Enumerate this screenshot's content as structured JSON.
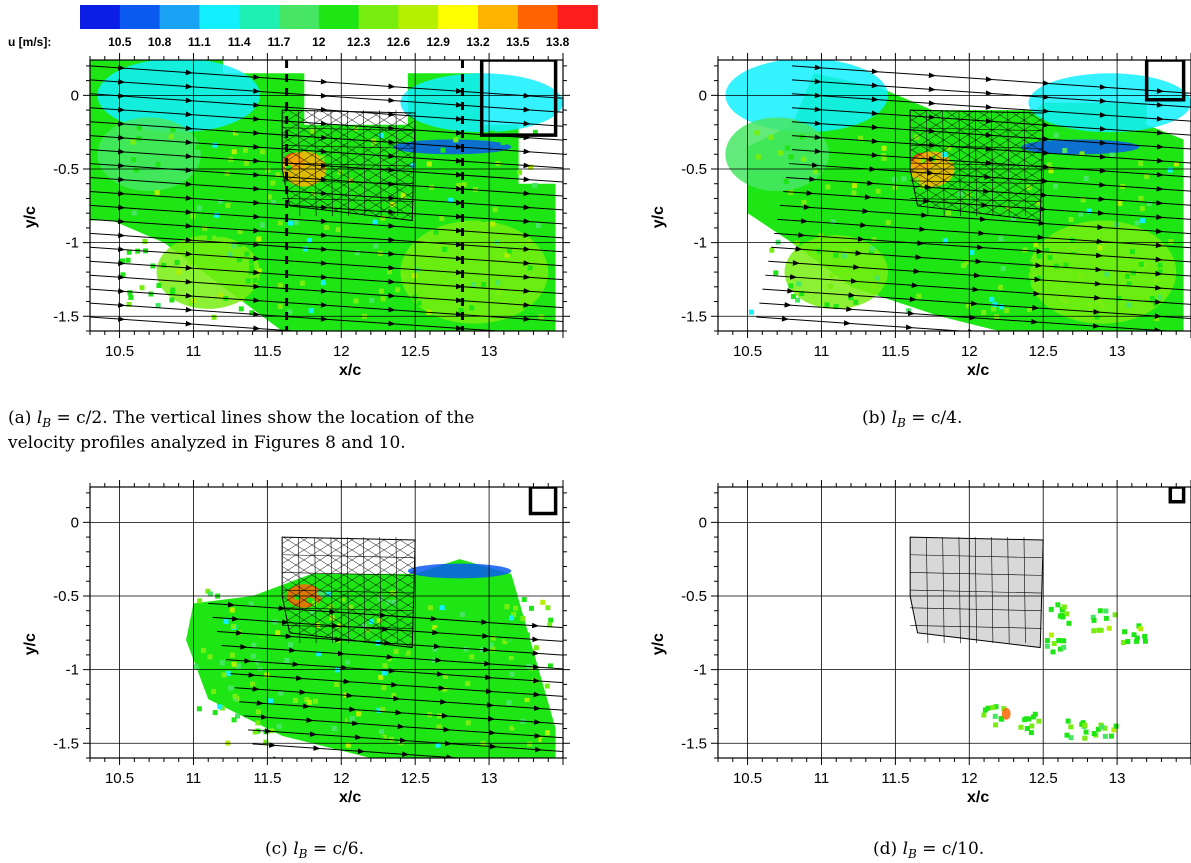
{
  "colorbar": {
    "label": "u [m/s]:",
    "levels": [
      "10.5",
      "10.8",
      "11.1",
      "11.4",
      "11.7",
      "12",
      "12.3",
      "12.6",
      "12.9",
      "13.2",
      "13.5",
      "13.8"
    ],
    "colors": [
      "#0a1ee6",
      "#0a5af0",
      "#1aa3f5",
      "#12f0ff",
      "#1ef0b4",
      "#46e664",
      "#1ee614",
      "#78ee10",
      "#b4f000",
      "#ffff00",
      "#ffb400",
      "#ff6400",
      "#ff1e1e"
    ]
  },
  "captions": [
    {
      "id": "a",
      "prefix": "(a) ",
      "var": "l",
      "sub": "B",
      "rest": " = c/2.  The vertical lines show the location of the",
      "line2": "velocity profiles analyzed in Figures 8 and 10."
    },
    {
      "id": "b",
      "prefix": "(b) ",
      "var": "l",
      "sub": "B",
      "rest": " = c/4.",
      "line2": ""
    },
    {
      "id": "c",
      "prefix": "(c) ",
      "var": "l",
      "sub": "B",
      "rest": " = c/6.",
      "line2": ""
    },
    {
      "id": "d",
      "prefix": "(d) ",
      "var": "l",
      "sub": "B",
      "rest": " = c/10.",
      "line2": ""
    }
  ],
  "chart_data": [
    {
      "type": "heatmap",
      "panel": "a",
      "xlabel": "x/c",
      "ylabel": "y/c",
      "xlim": [
        10.3,
        13.5
      ],
      "ylim": [
        -1.6,
        0.24
      ],
      "xticks": [
        "10.5",
        "11",
        "11.5",
        "12",
        "12.5",
        "13"
      ],
      "yticks": [
        "0",
        "-0.5",
        "-1",
        "-1.5"
      ],
      "grid": true,
      "profile_lines_x": [
        11.63,
        12.82
      ],
      "window_box": {
        "x": [
          12.95,
          13.45
        ],
        "y": [
          -0.27,
          0.24
        ]
      },
      "field": "u [m/s]",
      "dominant_value": 12.3,
      "notes": "Streamlines of mean velocity over the PIV field; wing model outline drawn in black."
    },
    {
      "type": "heatmap",
      "panel": "b",
      "xlabel": "x/c",
      "ylabel": "y/c",
      "xlim": [
        10.3,
        13.5
      ],
      "ylim": [
        -1.6,
        0.24
      ],
      "xticks": [
        "10.5",
        "11",
        "11.5",
        "12",
        "12.5",
        "13"
      ],
      "yticks": [
        "0",
        "-0.5",
        "-1",
        "-1.5"
      ],
      "grid": true,
      "window_box": {
        "x": [
          13.2,
          13.45
        ],
        "y": [
          -0.03,
          0.24
        ]
      },
      "field": "u [m/s]",
      "dominant_value": 12.3
    },
    {
      "type": "heatmap",
      "panel": "c",
      "xlabel": "x/c",
      "ylabel": "y/c",
      "xlim": [
        10.3,
        13.5
      ],
      "ylim": [
        -1.6,
        0.24
      ],
      "xticks": [
        "10.5",
        "11",
        "11.5",
        "12",
        "12.5",
        "13"
      ],
      "yticks": [
        "0",
        "-0.5",
        "-1",
        "-1.5"
      ],
      "grid": true,
      "window_box": {
        "x": [
          13.28,
          13.45
        ],
        "y": [
          0.06,
          0.24
        ]
      },
      "field": "u [m/s]",
      "dominant_value": 12.3
    },
    {
      "type": "heatmap",
      "panel": "d",
      "xlabel": "x/c",
      "ylabel": "y/c",
      "xlim": [
        10.3,
        13.5
      ],
      "ylim": [
        -1.6,
        0.24
      ],
      "xticks": [
        "10.5",
        "11",
        "11.5",
        "12",
        "12.5",
        "13"
      ],
      "yticks": [
        "0",
        "-0.5",
        "-1",
        "-1.5"
      ],
      "grid": true,
      "window_box": {
        "x": [
          13.36,
          13.45
        ],
        "y": [
          0.14,
          0.24
        ]
      },
      "field": "u [m/s]",
      "dominant_value": 12.3
    }
  ]
}
